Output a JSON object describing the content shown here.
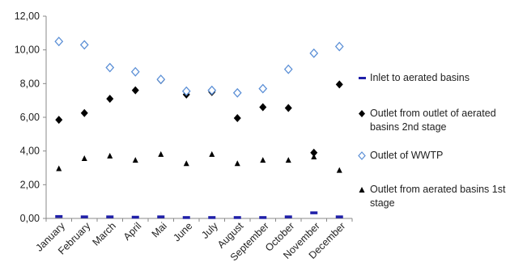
{
  "chart_data": {
    "type": "scatter",
    "categories": [
      "January",
      "February",
      "March",
      "April",
      "Mai",
      "June",
      "July",
      "August",
      "September",
      "October",
      "November",
      "December"
    ],
    "ylim": [
      0,
      12
    ],
    "y_ticks": [
      "0,00",
      "2,00",
      "4,00",
      "6,00",
      "8,00",
      "10,00",
      "12,00"
    ],
    "grid": false,
    "legend_position": "right",
    "series": [
      {
        "name": "Inlet to aerated basins",
        "marker": "dash",
        "color": "#1f1fa8",
        "values": [
          0.1,
          0.08,
          0.08,
          0.06,
          0.08,
          0.04,
          0.04,
          0.04,
          0.04,
          0.08,
          0.32,
          0.08
        ]
      },
      {
        "name": "Outlet from outlet of aerated basins 2nd stage",
        "marker": "diamond-filled",
        "color": "#000000",
        "values": [
          5.85,
          6.25,
          7.1,
          7.6,
          8.2,
          7.35,
          7.5,
          5.95,
          6.6,
          6.55,
          3.9,
          7.95
        ]
      },
      {
        "name": "Outlet of WWTP",
        "marker": "diamond-open",
        "color": "#5b8fd6",
        "values": [
          10.5,
          10.3,
          8.95,
          8.7,
          8.25,
          7.55,
          7.6,
          7.45,
          7.7,
          8.85,
          9.8,
          10.2
        ]
      },
      {
        "name": "Outlet from aerated basins 1st stage",
        "marker": "triangle",
        "color": "#000000",
        "values": [
          2.95,
          3.55,
          3.7,
          3.45,
          3.8,
          3.25,
          3.8,
          3.25,
          3.45,
          3.45,
          3.65,
          2.85
        ]
      }
    ]
  }
}
